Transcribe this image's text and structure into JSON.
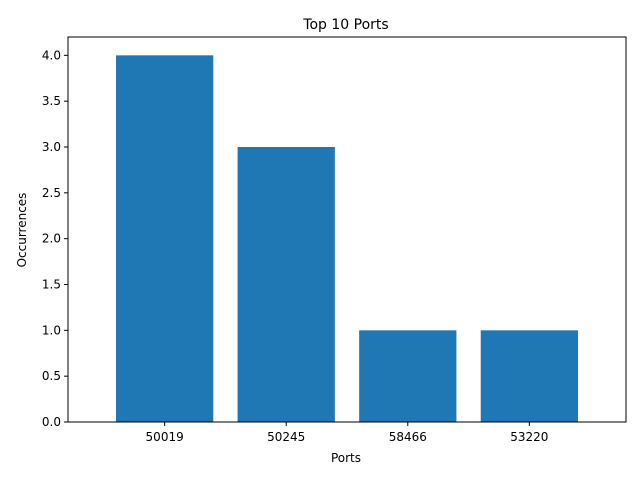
{
  "chart_data": {
    "type": "bar",
    "title": "Top 10 Ports",
    "xlabel": "Ports",
    "ylabel": "Occurrences",
    "categories": [
      "50019",
      "50245",
      "58466",
      "53220"
    ],
    "values": [
      4,
      3,
      1,
      1
    ],
    "ylim": [
      0,
      4.2
    ],
    "yticks": [
      "0.0",
      "0.5",
      "1.0",
      "1.5",
      "2.0",
      "2.5",
      "3.0",
      "3.5",
      "4.0"
    ],
    "bar_color": "#1f77b4",
    "grid": false
  }
}
